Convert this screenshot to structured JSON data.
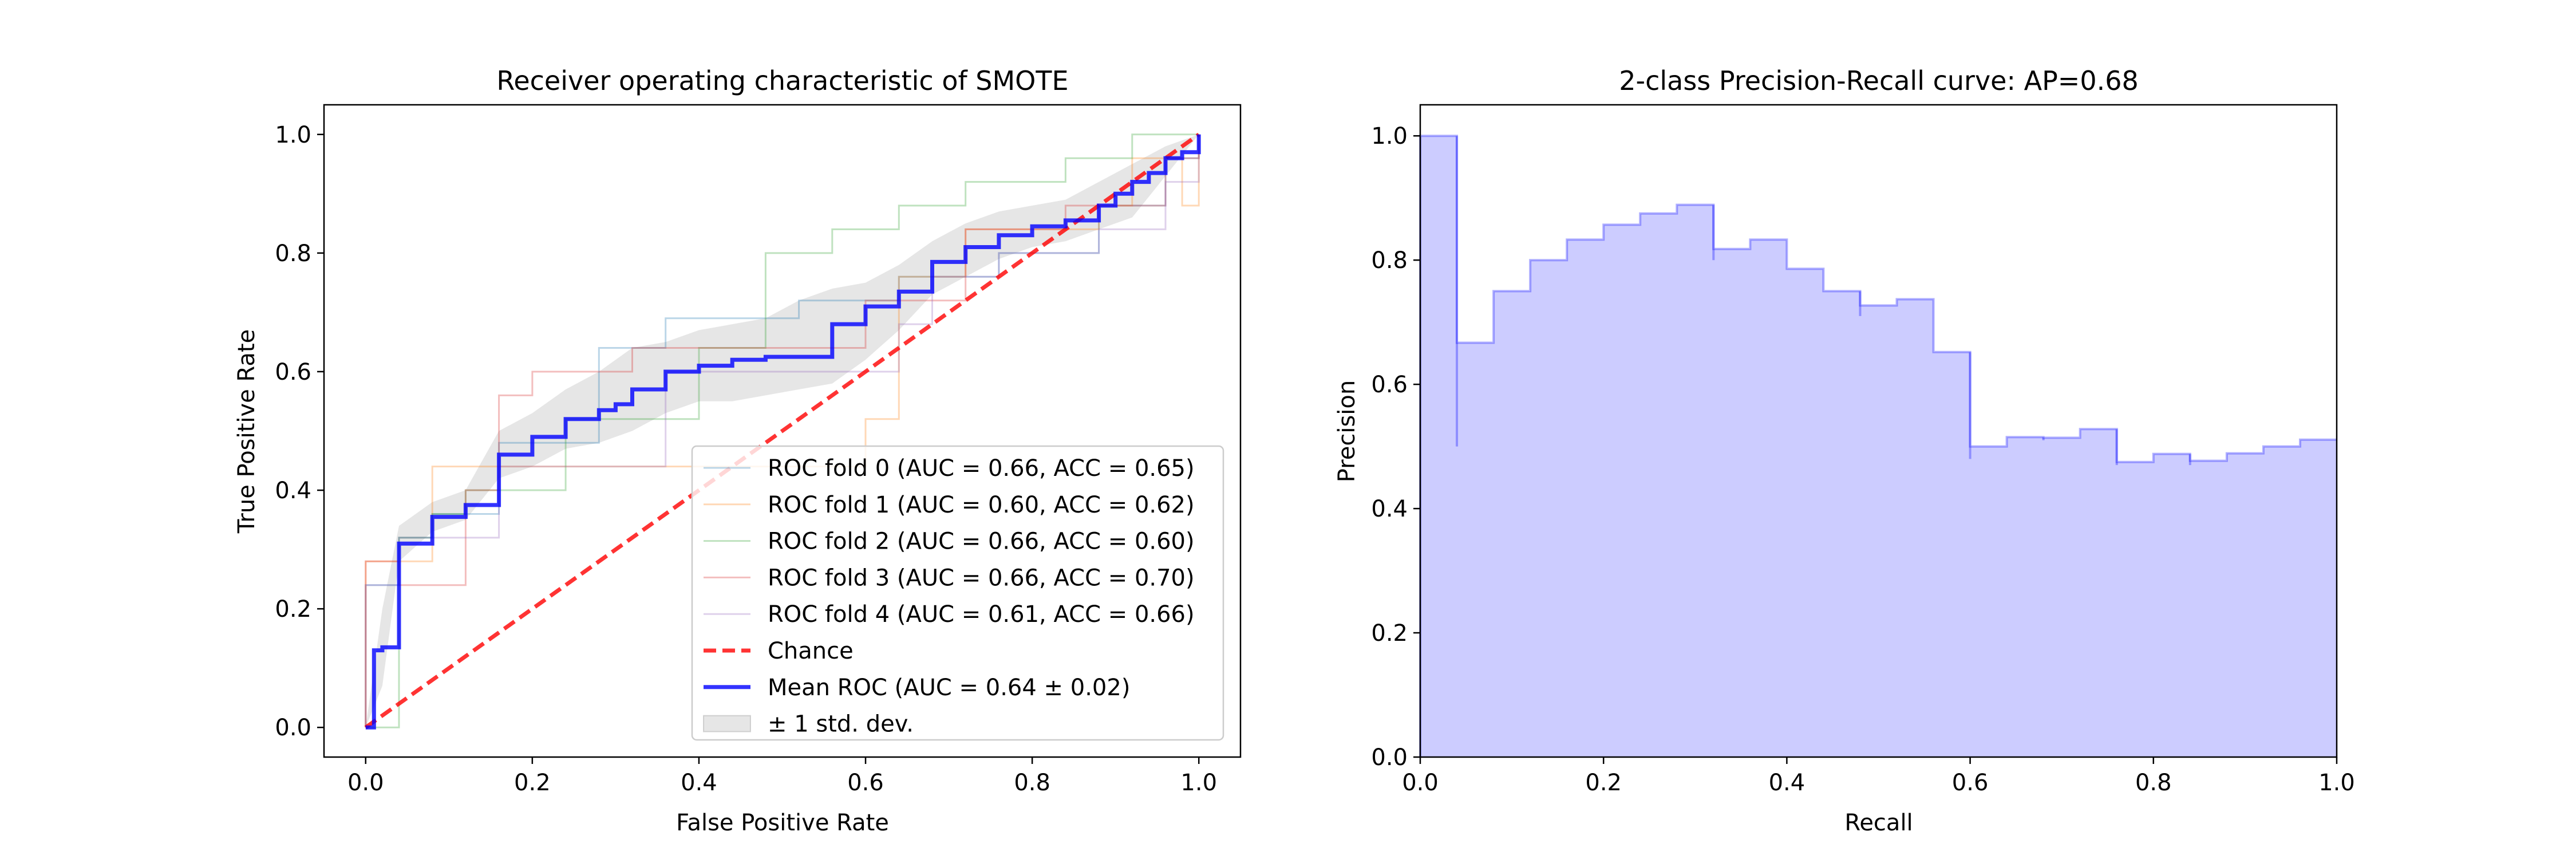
{
  "chart_data": [
    {
      "type": "line",
      "title": "Receiver operating characteristic of SMOTE",
      "xlabel": "False Positive Rate",
      "ylabel": "True Positive Rate",
      "xlim": [
        -0.05,
        1.05
      ],
      "ylim": [
        -0.05,
        1.05
      ],
      "xticks": [
        "0.0",
        "0.2",
        "0.4",
        "0.6",
        "0.8",
        "1.0"
      ],
      "yticks": [
        "0.0",
        "0.2",
        "0.4",
        "0.6",
        "0.8",
        "1.0"
      ],
      "grid": false,
      "legend_position": "lower-right",
      "series": [
        {
          "name": "ROC fold 0 (AUC = 0.66, ACC = 0.65)",
          "color": "#1f77b4",
          "x": [
            0,
            0,
            0.04,
            0.04,
            0.08,
            0.08,
            0.16,
            0.16,
            0.28,
            0.28,
            0.36,
            0.36,
            0.52,
            0.52,
            0.64,
            0.64,
            0.76,
            0.76,
            0.88,
            0.88,
            0.96,
            0.96,
            1.0,
            1.0
          ],
          "y": [
            0,
            0.24,
            0.24,
            0.32,
            0.32,
            0.36,
            0.36,
            0.48,
            0.48,
            0.64,
            0.64,
            0.69,
            0.69,
            0.72,
            0.72,
            0.76,
            0.76,
            0.8,
            0.8,
            0.88,
            0.88,
            0.96,
            0.96,
            1.0
          ]
        },
        {
          "name": "ROC fold 1 (AUC = 0.60, ACC = 0.62)",
          "color": "#ff7f0e",
          "x": [
            0,
            0,
            0.08,
            0.08,
            0.6,
            0.6,
            0.64,
            0.64,
            0.72,
            0.72,
            0.88,
            0.88,
            0.92,
            0.92,
            0.98,
            0.98,
            1.0,
            1.0
          ],
          "y": [
            0,
            0.28,
            0.28,
            0.44,
            0.44,
            0.52,
            0.52,
            0.76,
            0.76,
            0.84,
            0.84,
            0.88,
            0.88,
            0.96,
            0.96,
            0.88,
            0.88,
            1.0
          ]
        },
        {
          "name": "ROC fold 2 (AUC = 0.66, ACC = 0.60)",
          "color": "#2ca02c",
          "x": [
            0,
            0.04,
            0.04,
            0.08,
            0.08,
            0.12,
            0.12,
            0.24,
            0.24,
            0.4,
            0.4,
            0.48,
            0.48,
            0.56,
            0.56,
            0.64,
            0.64,
            0.72,
            0.72,
            0.84,
            0.84,
            0.92,
            0.92,
            1.0,
            1.0
          ],
          "y": [
            0,
            0,
            0.32,
            0.32,
            0.36,
            0.36,
            0.4,
            0.4,
            0.52,
            0.52,
            0.64,
            0.64,
            0.8,
            0.8,
            0.84,
            0.84,
            0.88,
            0.88,
            0.92,
            0.92,
            0.96,
            0.96,
            1.0,
            1.0,
            1.0
          ]
        },
        {
          "name": "ROC fold 3 (AUC = 0.66, ACC = 0.70)",
          "color": "#d62728",
          "x": [
            0,
            0,
            0.04,
            0.04,
            0.12,
            0.12,
            0.16,
            0.16,
            0.2,
            0.2,
            0.32,
            0.32,
            0.44,
            0.44,
            0.6,
            0.6,
            0.72,
            0.72,
            0.84,
            0.84,
            0.96,
            0.96,
            1.0,
            1.0
          ],
          "y": [
            0,
            0.28,
            0.28,
            0.24,
            0.24,
            0.4,
            0.4,
            0.56,
            0.56,
            0.6,
            0.6,
            0.64,
            0.64,
            0.64,
            0.64,
            0.72,
            0.72,
            0.84,
            0.84,
            0.88,
            0.88,
            0.96,
            0.96,
            1.0
          ]
        },
        {
          "name": "ROC fold 4 (AUC = 0.61, ACC = 0.66)",
          "color": "#9467bd",
          "x": [
            0,
            0,
            0.04,
            0.04,
            0.16,
            0.16,
            0.36,
            0.36,
            0.64,
            0.64,
            0.68,
            0.68,
            0.76,
            0.76,
            0.88,
            0.88,
            0.96,
            0.96,
            1.0,
            1.0
          ],
          "y": [
            0,
            0.24,
            0.24,
            0.32,
            0.32,
            0.44,
            0.44,
            0.6,
            0.6,
            0.68,
            0.68,
            0.76,
            0.76,
            0.8,
            0.8,
            0.84,
            0.84,
            0.92,
            0.92,
            1.0
          ]
        },
        {
          "name": "Chance",
          "color": "#ff0000",
          "x": [
            0,
            1
          ],
          "y": [
            0,
            1
          ]
        },
        {
          "name": "Mean ROC (AUC = 0.64 ± 0.02)",
          "color": "#0000ff",
          "x": [
            0,
            0.01,
            0.01,
            0.02,
            0.02,
            0.04,
            0.04,
            0.08,
            0.08,
            0.12,
            0.12,
            0.16,
            0.16,
            0.2,
            0.2,
            0.24,
            0.24,
            0.28,
            0.28,
            0.3,
            0.3,
            0.32,
            0.32,
            0.36,
            0.36,
            0.4,
            0.4,
            0.44,
            0.44,
            0.48,
            0.48,
            0.56,
            0.56,
            0.6,
            0.6,
            0.64,
            0.64,
            0.68,
            0.68,
            0.72,
            0.72,
            0.76,
            0.76,
            0.8,
            0.8,
            0.84,
            0.84,
            0.88,
            0.88,
            0.9,
            0.9,
            0.92,
            0.92,
            0.94,
            0.94,
            0.96,
            0.96,
            0.98,
            0.98,
            1.0,
            1.0
          ],
          "y": [
            0,
            0,
            0.13,
            0.13,
            0.135,
            0.135,
            0.31,
            0.31,
            0.355,
            0.355,
            0.375,
            0.375,
            0.46,
            0.46,
            0.49,
            0.49,
            0.52,
            0.52,
            0.535,
            0.535,
            0.545,
            0.545,
            0.57,
            0.57,
            0.6,
            0.6,
            0.61,
            0.61,
            0.62,
            0.62,
            0.625,
            0.625,
            0.68,
            0.68,
            0.71,
            0.71,
            0.735,
            0.735,
            0.785,
            0.785,
            0.81,
            0.81,
            0.83,
            0.83,
            0.845,
            0.845,
            0.855,
            0.855,
            0.88,
            0.88,
            0.9,
            0.9,
            0.92,
            0.92,
            0.935,
            0.935,
            0.96,
            0.96,
            0.97,
            0.97,
            1.0
          ]
        },
        {
          "name": "± 1 std. dev.",
          "color": "#808080",
          "type": "area",
          "x": [
            0,
            0.02,
            0.04,
            0.08,
            0.12,
            0.16,
            0.2,
            0.24,
            0.28,
            0.32,
            0.36,
            0.4,
            0.44,
            0.48,
            0.52,
            0.56,
            0.6,
            0.64,
            0.68,
            0.72,
            0.76,
            0.8,
            0.84,
            0.88,
            0.92,
            0.96,
            1.0
          ],
          "upper": [
            0,
            0.2,
            0.34,
            0.38,
            0.4,
            0.5,
            0.53,
            0.57,
            0.6,
            0.64,
            0.65,
            0.67,
            0.68,
            0.69,
            0.72,
            0.74,
            0.75,
            0.78,
            0.82,
            0.85,
            0.87,
            0.88,
            0.89,
            0.92,
            0.95,
            0.98,
            1.0
          ],
          "lower": [
            0,
            0.07,
            0.28,
            0.33,
            0.35,
            0.42,
            0.44,
            0.47,
            0.48,
            0.5,
            0.53,
            0.55,
            0.55,
            0.56,
            0.57,
            0.58,
            0.62,
            0.67,
            0.73,
            0.76,
            0.79,
            0.81,
            0.82,
            0.84,
            0.86,
            0.93,
            1.0
          ]
        }
      ]
    },
    {
      "type": "area",
      "title": "2-class Precision-Recall curve: AP=0.68",
      "xlabel": "Recall",
      "ylabel": "Precision",
      "xlim": [
        0,
        1
      ],
      "ylim": [
        0,
        1.05
      ],
      "xticks": [
        "0.0",
        "0.2",
        "0.4",
        "0.6",
        "0.8",
        "1.0"
      ],
      "yticks": [
        "0.0",
        "0.2",
        "0.4",
        "0.6",
        "0.8",
        "1.0"
      ],
      "grid": false,
      "color": "#0000ff",
      "recall": [
        0.0,
        0.04,
        0.08,
        0.12,
        0.16,
        0.2,
        0.24,
        0.28,
        0.32,
        0.36,
        0.4,
        0.44,
        0.48,
        0.52,
        0.56,
        0.6,
        0.64,
        0.68,
        0.72,
        0.76,
        0.8,
        0.84,
        0.88,
        0.92,
        0.96,
        1.0
      ],
      "precision": [
        1.0,
        0.667,
        0.75,
        0.8,
        0.833,
        0.857,
        0.875,
        0.889,
        0.818,
        0.833,
        0.786,
        0.75,
        0.727,
        0.737,
        0.652,
        0.5,
        0.515,
        0.514,
        0.528,
        0.475,
        0.488,
        0.477,
        0.489,
        0.5,
        0.511,
        0.511
      ],
      "dips": [
        [
          0.04,
          0.5
        ],
        [
          0.32,
          0.8
        ],
        [
          0.48,
          0.71
        ],
        [
          0.6,
          0.48
        ],
        [
          0.68,
          0.51
        ],
        [
          0.76,
          0.47
        ],
        [
          0.84,
          0.47
        ]
      ]
    }
  ]
}
